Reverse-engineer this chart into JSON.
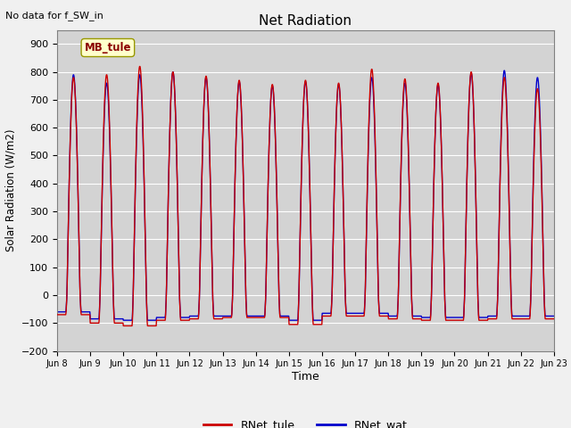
{
  "title": "Net Radiation",
  "subtitle": "No data for f_SW_in",
  "ylabel": "Solar Radiation (W/m2)",
  "xlabel": "Time",
  "ylim": [
    -200,
    950
  ],
  "yticks": [
    -200,
    -100,
    0,
    100,
    200,
    300,
    400,
    500,
    600,
    700,
    800,
    900
  ],
  "color_tule": "#cc0000",
  "color_wat": "#0000cc",
  "legend_labels": [
    "RNet_tule",
    "RNet_wat"
  ],
  "annotation_box": "MB_tule",
  "plot_bg_color": "#d3d3d3",
  "fig_bg_color": "#f0f0f0",
  "n_days": 15,
  "peak_values_tule": [
    780,
    790,
    820,
    800,
    785,
    770,
    755,
    770,
    760,
    810,
    775,
    760,
    800,
    780,
    740
  ],
  "peak_values_wat": [
    790,
    760,
    790,
    800,
    780,
    765,
    750,
    765,
    755,
    780,
    760,
    755,
    795,
    805,
    780
  ],
  "night_values_tule": [
    -70,
    -100,
    -110,
    -90,
    -85,
    -80,
    -80,
    -105,
    -75,
    -75,
    -85,
    -90,
    -90,
    -85,
    -85
  ],
  "night_values_wat": [
    -60,
    -85,
    -90,
    -80,
    -75,
    -75,
    -75,
    -90,
    -65,
    -65,
    -75,
    -80,
    -80,
    -75,
    -75
  ],
  "xtick_labels": [
    "Jun 8",
    "Jun 9",
    "Jun 10",
    "Jun 11",
    "Jun 12",
    "Jun 13",
    "Jun 14",
    "Jun 15",
    "Jun 16",
    "Jun 17",
    "Jun 18",
    "Jun 19",
    "Jun 20",
    "Jun 21",
    "Jun 22",
    "Jun 23"
  ]
}
